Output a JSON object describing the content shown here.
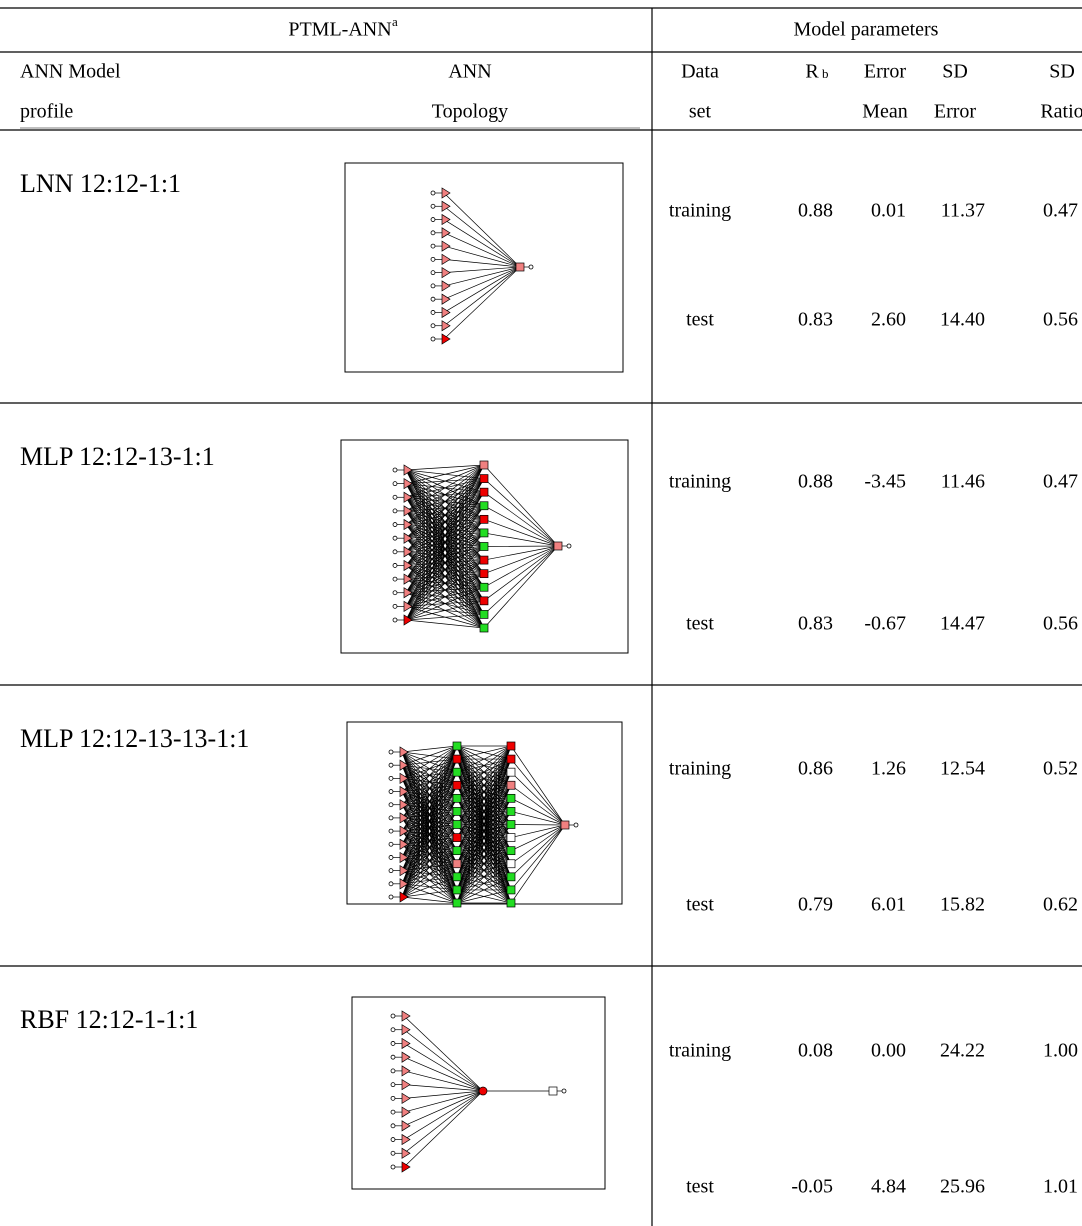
{
  "header": {
    "group_left": "PTML-ANN",
    "group_left_note": "a",
    "group_right": "Model parameters",
    "columns": [
      [
        "ANN Model",
        "profile"
      ],
      [
        "ANN",
        "Topology"
      ],
      [
        "Data",
        "set"
      ],
      [
        "R"
      ],
      [
        "Error",
        "Mean"
      ],
      [
        "SD",
        "Error"
      ],
      [
        "SD",
        "Ratio"
      ]
    ],
    "r_note": "b"
  },
  "models": [
    {
      "profile": "LNN 12:12-1:1",
      "sets": [
        {
          "name": "training",
          "values": [
            "0.88",
            "0.01",
            "11.37",
            "0.47"
          ]
        },
        {
          "name": "test",
          "values": [
            "0.83",
            "2.60",
            "14.40",
            "0.56"
          ]
        }
      ]
    },
    {
      "profile": "MLP 12:12-13-1:1",
      "sets": [
        {
          "name": "training",
          "values": [
            "0.88",
            "-3.45",
            "11.46",
            "0.47"
          ]
        },
        {
          "name": "test",
          "values": [
            "0.83",
            "-0.67",
            "14.47",
            "0.56"
          ]
        }
      ]
    },
    {
      "profile": "MLP 12:12-13-13-1:1",
      "sets": [
        {
          "name": "training",
          "values": [
            "0.86",
            "1.26",
            "12.54",
            "0.52"
          ]
        },
        {
          "name": "test",
          "values": [
            "0.79",
            "6.01",
            "15.82",
            "0.62"
          ]
        }
      ]
    },
    {
      "profile": "RBF 12:12-1-1:1",
      "sets": [
        {
          "name": "training",
          "values": [
            "0.08",
            "0.00",
            "24.22",
            "1.00"
          ]
        },
        {
          "name": "test",
          "values": [
            "-0.05",
            "4.84",
            "25.96",
            "1.01"
          ]
        }
      ]
    }
  ]
}
